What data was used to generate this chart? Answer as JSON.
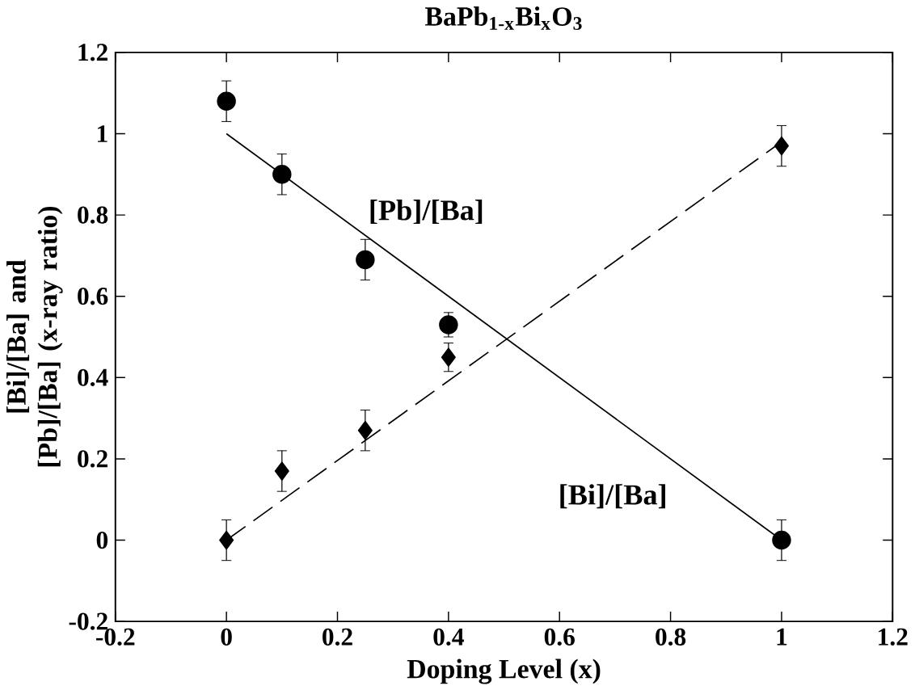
{
  "chart_data": {
    "type": "scatter",
    "title": "BaPb$_{1-x}$Bi$_{x}$O$_{3}$",
    "xlabel": "Doping Level (x)",
    "ylabel": "[Bi]/[Ba] and [Pb]/[Ba] (x-ray ratio)",
    "xlim": [
      -0.2,
      1.2
    ],
    "ylim": [
      -0.2,
      1.2
    ],
    "xticks": [
      -0.2,
      0,
      0.2,
      0.4,
      0.6,
      0.8,
      1,
      1.2
    ],
    "yticks": [
      -0.2,
      0,
      0.2,
      0.4,
      0.6,
      0.8,
      1,
      1.2
    ],
    "series": [
      {
        "marker": "circle",
        "color": "#000000",
        "x": [
          0,
          0.1,
          0.25,
          0.4,
          1.0
        ],
        "values": [
          1.08,
          0.9,
          0.69,
          0.53,
          0.0
        ],
        "errors": [
          0.05,
          0.05,
          0.05,
          0.03,
          0.05
        ]
      },
      {
        "marker": "diamond",
        "color": "#000000",
        "x": [
          0,
          0.1,
          0.25,
          0.4,
          1.0
        ],
        "values": [
          0.0,
          0.17,
          0.27,
          0.45,
          0.97
        ],
        "errors": [
          0.05,
          0.05,
          0.05,
          0.035,
          0.05
        ]
      },
      {
        "type": "line",
        "marker": "none",
        "line_style": "solid",
        "color": "#000000",
        "x": [
          0,
          1.0
        ],
        "values": [
          1.0,
          0.0
        ]
      },
      {
        "type": "line",
        "marker": "none",
        "line_style": "dashed",
        "color": "#000000",
        "x": [
          0,
          1.0
        ],
        "values": [
          0.0,
          0.98
        ]
      }
    ],
    "annotations": [
      "[Pb]/[Ba]",
      "[Bi]/[Ba]"
    ]
  }
}
